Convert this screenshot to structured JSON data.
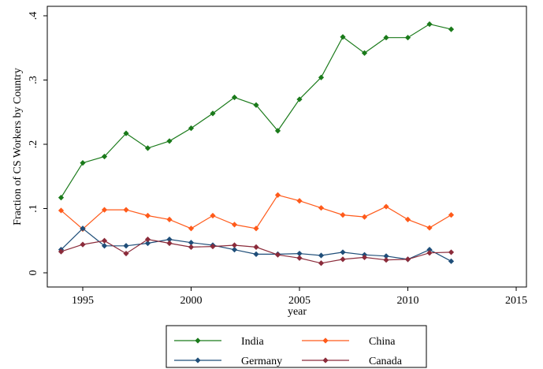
{
  "chart_data": {
    "type": "line",
    "xlabel": "year",
    "ylabel": "Fraction of CS Workers by Country",
    "xlim": [
      1994,
      2015
    ],
    "ylim": [
      0,
      0.4
    ],
    "xticks": [
      1995,
      2000,
      2005,
      2010,
      2015
    ],
    "xtick_labels": [
      "1995",
      "2000",
      "2005",
      "2010",
      "2015"
    ],
    "yticks": [
      0,
      0.1,
      0.2,
      0.3,
      0.4
    ],
    "ytick_labels": [
      "0",
      ".1",
      ".2",
      ".3",
      ".4"
    ],
    "grid": false,
    "legend_placement": "bottom",
    "x": [
      1994,
      1995,
      1996,
      1997,
      1998,
      1999,
      2000,
      2001,
      2002,
      2003,
      2004,
      2005,
      2006,
      2007,
      2008,
      2009,
      2010,
      2011,
      2012
    ],
    "series": [
      {
        "name": "India",
        "color": "#1a7a1a",
        "values": [
          0.117,
          0.171,
          0.181,
          0.217,
          0.194,
          0.205,
          0.225,
          0.248,
          0.273,
          0.261,
          0.221,
          0.27,
          0.304,
          0.367,
          0.342,
          0.366,
          0.366,
          0.387,
          0.379
        ]
      },
      {
        "name": "China",
        "color": "#ff5a1a",
        "values": [
          0.097,
          0.068,
          0.098,
          0.098,
          0.089,
          0.083,
          0.069,
          0.089,
          0.075,
          0.069,
          0.121,
          0.112,
          0.101,
          0.09,
          0.087,
          0.103,
          0.083,
          0.07,
          0.09
        ]
      },
      {
        "name": "Germany",
        "color": "#1f4e79",
        "values": [
          0.036,
          0.069,
          0.042,
          0.042,
          0.046,
          0.052,
          0.047,
          0.043,
          0.036,
          0.029,
          0.029,
          0.03,
          0.027,
          0.032,
          0.028,
          0.026,
          0.021,
          0.036,
          0.018
        ]
      },
      {
        "name": "Canada",
        "color": "#8b2b3a",
        "values": [
          0.033,
          0.044,
          0.05,
          0.03,
          0.052,
          0.046,
          0.04,
          0.041,
          0.043,
          0.04,
          0.028,
          0.023,
          0.015,
          0.021,
          0.024,
          0.02,
          0.021,
          0.031,
          0.032
        ]
      }
    ]
  }
}
